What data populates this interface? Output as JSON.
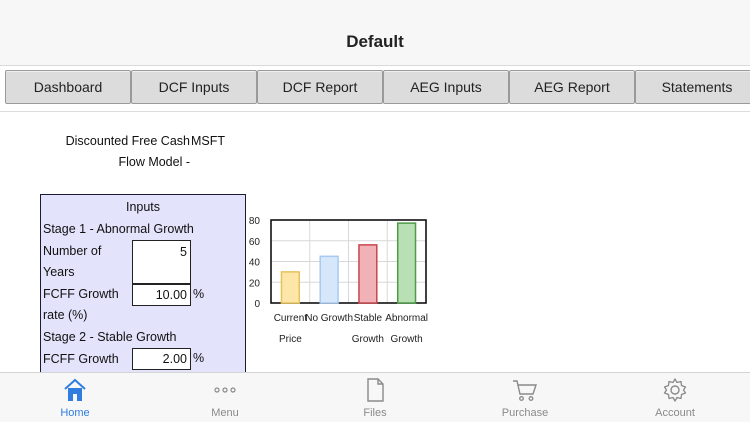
{
  "header": {
    "title": "Default"
  },
  "tabs": [
    {
      "label": "Dashboard"
    },
    {
      "label": "DCF Inputs"
    },
    {
      "label": "DCF Report"
    },
    {
      "label": "AEG Inputs"
    },
    {
      "label": "AEG Report"
    },
    {
      "label": "Statements"
    }
  ],
  "model": {
    "label": "Discounted Free Cash Flow Model -",
    "ticker": "MSFT"
  },
  "inputs": {
    "title": "Inputs",
    "stage1_title": "Stage 1 - Abnormal Growth",
    "years_label": "Number of Years",
    "years_value": "5",
    "growth1_label": "FCFF Growth rate (%)",
    "growth1_value": "10.00",
    "stage2_title": "Stage 2 - Stable Growth",
    "growth2_label": "FCFF Growth",
    "growth2_value": "2.00",
    "percent": "%"
  },
  "chart_data": {
    "type": "bar",
    "categories": [
      "Current Price",
      "No Growth",
      "Stable Growth",
      "Abnormal Growth"
    ],
    "values": [
      30,
      45,
      56,
      77
    ],
    "ylim": [
      0,
      80
    ],
    "yticks": [
      "0",
      "20",
      "40",
      "60",
      "80"
    ],
    "grid": true,
    "colors": {
      "fill": [
        "#fde6a8",
        "#d6e7fb",
        "#f0b2b6",
        "#b9e0b5"
      ],
      "stroke": [
        "#e7c35c",
        "#a9c9ef",
        "#c9454e",
        "#4d9a49"
      ]
    }
  },
  "nav": [
    {
      "label": "Home",
      "icon": "home-icon",
      "active": true
    },
    {
      "label": "Menu",
      "icon": "more-icon",
      "active": false
    },
    {
      "label": "Files",
      "icon": "file-icon",
      "active": false
    },
    {
      "label": "Purchase",
      "icon": "cart-icon",
      "active": false
    },
    {
      "label": "Account",
      "icon": "gear-icon",
      "active": false
    }
  ],
  "theme": {
    "accent": "#2f7ddf",
    "inputs_bg": "#e3e3fb"
  }
}
